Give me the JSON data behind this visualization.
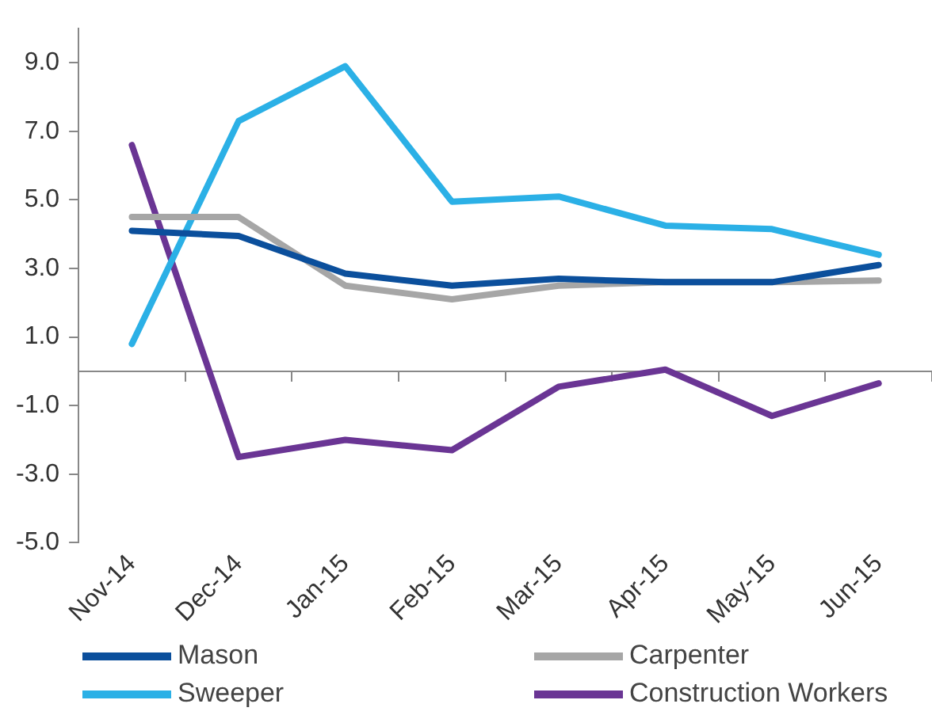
{
  "chart_data": {
    "type": "line",
    "categories": [
      "Nov-14",
      "Dec-14",
      "Jan-15",
      "Feb-15",
      "Mar-15",
      "Apr-15",
      "May-15",
      "Jun-15"
    ],
    "series": [
      {
        "name": "Mason",
        "color": "#0b4f9c",
        "values": [
          4.1,
          3.95,
          2.85,
          2.5,
          2.7,
          2.6,
          2.6,
          3.1
        ]
      },
      {
        "name": "Carpenter",
        "color": "#a6a6a6",
        "values": [
          4.5,
          4.5,
          2.5,
          2.1,
          2.5,
          2.6,
          2.6,
          2.65
        ]
      },
      {
        "name": "Sweeper",
        "color": "#2bb0e6",
        "values": [
          0.8,
          7.3,
          8.9,
          4.95,
          5.1,
          4.25,
          4.15,
          3.4
        ]
      },
      {
        "name": "Construction Workers",
        "color": "#6a3594",
        "values": [
          6.6,
          -2.5,
          -2.0,
          -2.3,
          -0.45,
          0.05,
          -1.3,
          -0.35
        ]
      }
    ],
    "ylim": [
      -5,
      10
    ],
    "yticks": [
      {
        "value": -5,
        "label": "-5.0"
      },
      {
        "value": -3,
        "label": "-3.0"
      },
      {
        "value": -1,
        "label": "-1.0"
      },
      {
        "value": 1,
        "label": "1.0"
      },
      {
        "value": 3,
        "label": "3.0"
      },
      {
        "value": 5,
        "label": "5.0"
      },
      {
        "value": 7,
        "label": "7.0"
      },
      {
        "value": 9,
        "label": "9.0"
      }
    ],
    "grid": false,
    "legend": "bottom",
    "marker": "none",
    "line_style": "solid"
  }
}
